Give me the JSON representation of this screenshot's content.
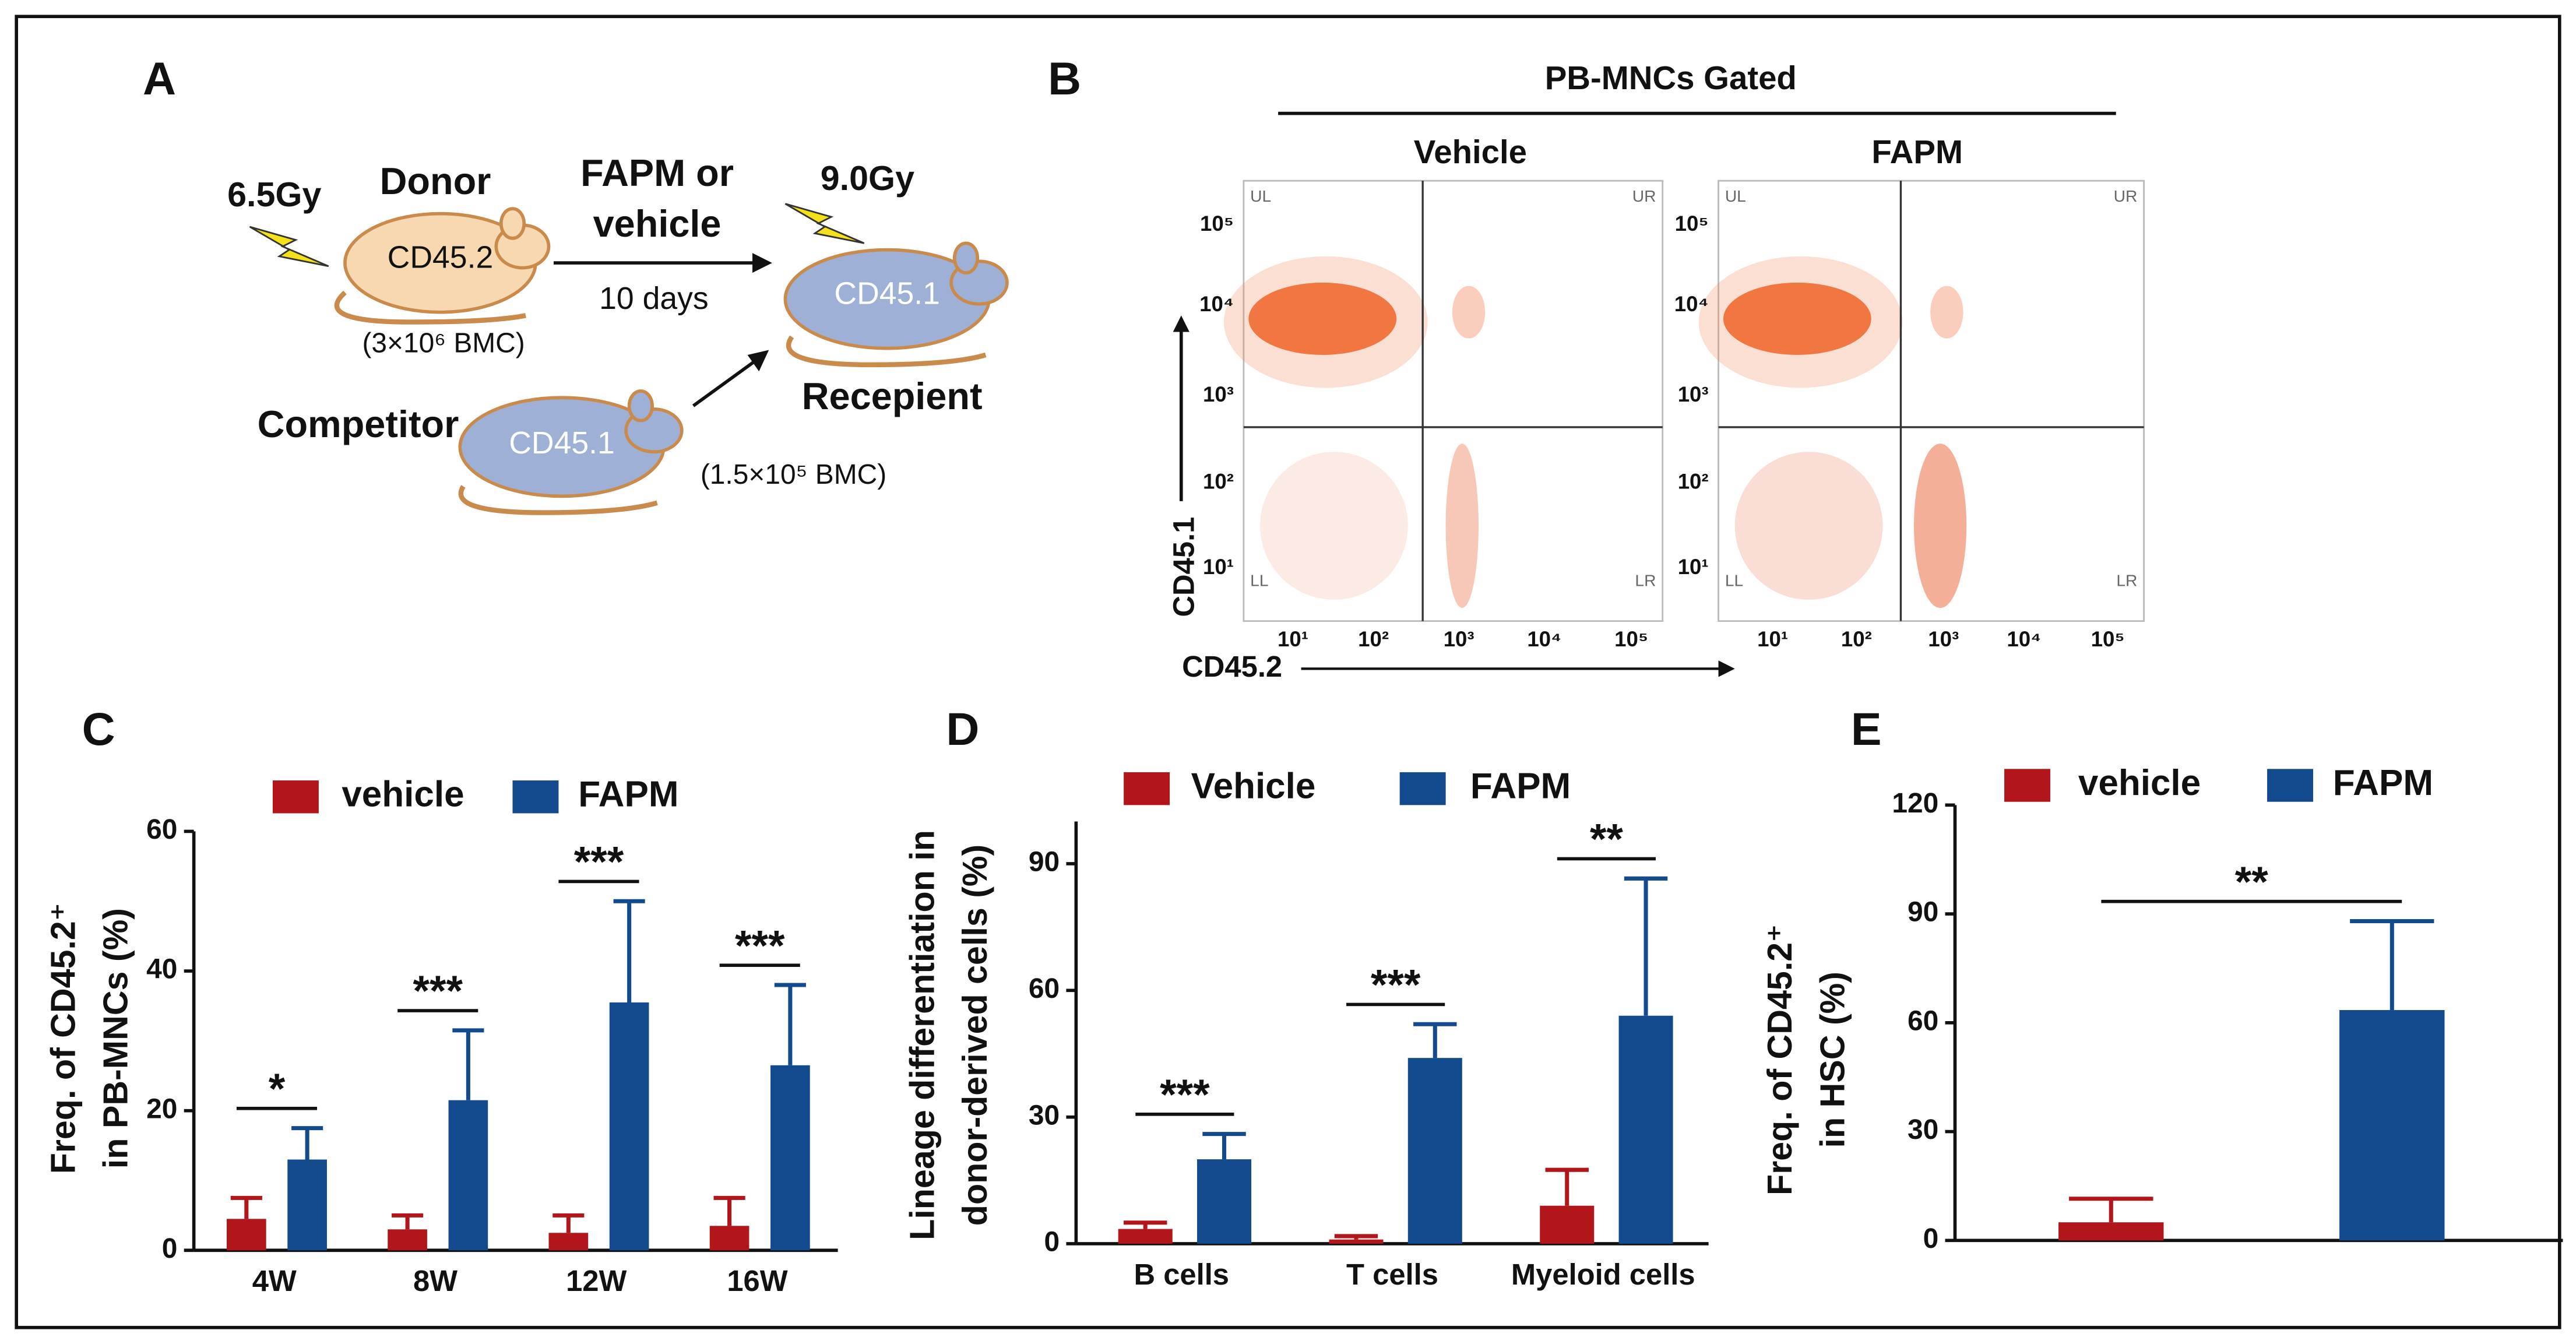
{
  "panel_labels": [
    "A",
    "B",
    "C",
    "D",
    "E"
  ],
  "diagram": {
    "dose_donor": "6.5Gy",
    "donor": "Donor",
    "donor_marker": "CD45.2",
    "donor_cells": "(3×10⁶ BMC)",
    "treatment": [
      "FAPM or",
      "vehicle"
    ],
    "duration": "10 days",
    "dose_recipient": "9.0Gy",
    "recipient_marker": "CD45.1",
    "recipient": "Recepient",
    "competitor": "Competitor",
    "competitor_marker": "CD45.1",
    "competitor_cells": "(1.5×10⁵ BMC)"
  },
  "flow": {
    "title": "PB-MNCs Gated",
    "plots": [
      "Vehicle",
      "FAPM"
    ],
    "quadrants": [
      "UL",
      "UR",
      "LL",
      "LR"
    ],
    "ticks": [
      "10¹",
      "10²",
      "10³",
      "10⁴",
      "10⁵"
    ],
    "ylabel": "CD45.1",
    "xlabel": "CD45.2"
  },
  "chart_data": [
    {
      "type": "bar",
      "ylabel": [
        "Freq. of CD45.2⁺",
        "in PB-MNCs (%)"
      ],
      "categories": [
        "4W",
        "8W",
        "12W",
        "16W"
      ],
      "series": [
        {
          "name": "vehicle",
          "color": "#b2151a",
          "values": [
            4.5,
            3,
            2.5,
            3.5
          ],
          "errors": [
            3,
            2,
            2.5,
            4
          ]
        },
        {
          "name": "FAPM",
          "color": "#134a8e",
          "values": [
            13,
            21.5,
            35.5,
            26.5
          ],
          "errors": [
            4.5,
            10,
            14.5,
            11.5
          ]
        }
      ],
      "significance": [
        "*",
        "***",
        "***",
        "***"
      ],
      "ylim": [
        0,
        60
      ],
      "yticks": [
        0,
        20,
        40,
        60
      ]
    },
    {
      "type": "bar",
      "ylabel": [
        "Lineage differentiation in",
        "donor-derived cells (%)"
      ],
      "categories": [
        "B cells",
        "T cells",
        "Myeloid cells"
      ],
      "series": [
        {
          "name": "Vehicle",
          "color": "#b2151a",
          "values": [
            3.5,
            1,
            9
          ],
          "errors": [
            1.5,
            0.8,
            8.5
          ]
        },
        {
          "name": "FAPM",
          "color": "#134a8e",
          "values": [
            20,
            44,
            54
          ],
          "errors": [
            6,
            8,
            32.5
          ]
        }
      ],
      "significance": [
        "***",
        "***",
        "**"
      ],
      "ylim": [
        0,
        100
      ],
      "yticks": [
        0,
        30,
        60,
        90
      ]
    },
    {
      "type": "bar",
      "ylabel": [
        "Freq. of CD45.2⁺",
        "in HSC (%)"
      ],
      "categories": [
        null
      ],
      "series": [
        {
          "name": "vehicle",
          "color": "#b2151a",
          "values": [
            5
          ],
          "errors": [
            6.5
          ]
        },
        {
          "name": "FAPM",
          "color": "#134a8e",
          "values": [
            63.5
          ],
          "errors": [
            24.5
          ]
        }
      ],
      "significance": [
        "**"
      ],
      "ylim": [
        0,
        120
      ],
      "yticks": [
        0,
        30,
        60,
        90,
        120
      ]
    }
  ]
}
